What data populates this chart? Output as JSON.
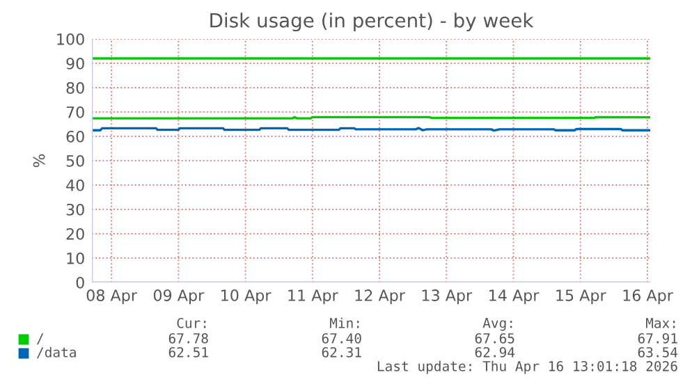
{
  "chart_data": {
    "type": "line",
    "title": "Disk usage (in percent) - by week",
    "ylabel": "%",
    "x": [
      "2026-04-08T05:00",
      "2026-04-11T05:00",
      "2026-04-11T05:30",
      "2026-04-11T06:30",
      "2026-04-11T11:30",
      "2026-04-11T12:00",
      "2026-04-13T06:00",
      "2026-04-13T06:30",
      "2026-04-15T17:00",
      "2026-04-15T17:30",
      "2026-04-16T13:00"
    ],
    "series": [
      {
        "name": "/",
        "color": "#00cc00",
        "values": [
          67.4,
          67.4,
          67.9,
          67.4,
          67.4,
          67.9,
          67.9,
          67.6,
          67.6,
          67.9,
          67.8
        ]
      },
      {
        "name": "/data",
        "color": "#0066b3",
        "x": [
          "2026-04-08T05:00",
          "2026-04-08T08:00",
          "2026-04-08T08:40",
          "2026-04-09T04:00",
          "2026-04-09T04:30",
          "2026-04-09T12:00",
          "2026-04-09T12:30",
          "2026-04-10T04:00",
          "2026-04-10T04:30",
          "2026-04-10T17:00",
          "2026-04-10T17:30",
          "2026-04-11T03:00",
          "2026-04-11T03:30",
          "2026-04-11T21:30",
          "2026-04-11T22:00",
          "2026-04-12T03:00",
          "2026-04-12T03:30",
          "2026-04-13T01:00",
          "2026-04-13T02:00",
          "2026-04-13T03:30",
          "2026-04-13T05:00",
          "2026-04-14T04:00",
          "2026-04-14T05:00",
          "2026-04-14T07:00",
          "2026-04-14T08:00",
          "2026-04-15T02:30",
          "2026-04-15T03:00",
          "2026-04-15T10:00",
          "2026-04-15T10:30",
          "2026-04-16T02:30",
          "2026-04-16T03:00",
          "2026-04-16T13:00"
        ],
        "values": [
          62.5,
          62.5,
          63.3,
          63.3,
          62.7,
          62.7,
          63.3,
          63.3,
          62.7,
          62.7,
          63.3,
          63.3,
          62.7,
          62.7,
          63.3,
          63.3,
          62.9,
          62.9,
          63.4,
          62.5,
          62.9,
          62.9,
          62.4,
          62.9,
          62.9,
          62.9,
          62.5,
          62.5,
          63.0,
          63.0,
          62.5,
          62.5
        ]
      }
    ],
    "ref_lines": [
      {
        "axis": "y",
        "value": 92,
        "color": "#00cc00"
      }
    ],
    "xlim": [
      "2026-04-08T05:00",
      "2026-04-16T13:00"
    ],
    "xticks": [
      {
        "value": "2026-04-08T12:00",
        "label": "08 Apr"
      },
      {
        "value": "2026-04-09T12:00",
        "label": "09 Apr"
      },
      {
        "value": "2026-04-10T12:00",
        "label": "10 Apr"
      },
      {
        "value": "2026-04-11T12:00",
        "label": "11 Apr"
      },
      {
        "value": "2026-04-12T12:00",
        "label": "12 Apr"
      },
      {
        "value": "2026-04-13T12:00",
        "label": "13 Apr"
      },
      {
        "value": "2026-04-14T12:00",
        "label": "14 Apr"
      },
      {
        "value": "2026-04-15T12:00",
        "label": "15 Apr"
      },
      {
        "value": "2026-04-16T12:00",
        "label": "16 Apr"
      }
    ],
    "ylim": [
      0,
      100
    ],
    "yticks": [
      0,
      10,
      20,
      30,
      40,
      50,
      60,
      70,
      80,
      90,
      100
    ],
    "grid": true,
    "legend": "bottom",
    "annotations": [
      "Cur:",
      "Min:",
      "Avg:",
      "Max:",
      "67.78",
      "67.40",
      "67.65",
      "67.91",
      "62.51",
      "62.31",
      "62.94",
      "63.54",
      "Last update: Thu Apr 16 13:01:18 2026"
    ]
  }
}
